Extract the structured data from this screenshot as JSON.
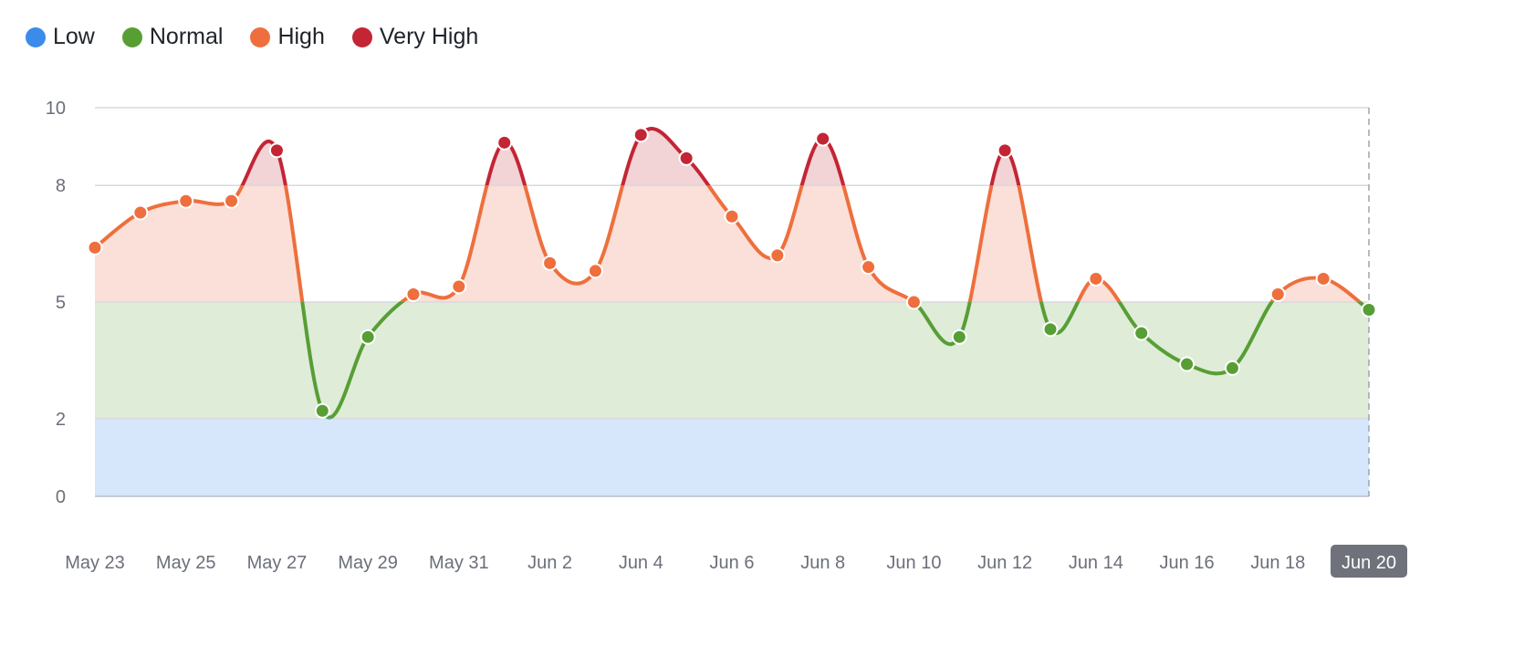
{
  "legend": [
    {
      "label": "Low",
      "color": "#3b8beb"
    },
    {
      "label": "Normal",
      "color": "#579e35"
    },
    {
      "label": "High",
      "color": "#ee6f3d"
    },
    {
      "label": "Very High",
      "color": "#c32535"
    }
  ],
  "chart_data": {
    "type": "line",
    "title": "",
    "xlabel": "",
    "ylabel": "",
    "ylim": [
      0,
      10
    ],
    "y_ticks": [
      "0",
      "2",
      "5",
      "8",
      "10"
    ],
    "bands": [
      {
        "name": "Low",
        "from": 0,
        "to": 2,
        "color": "#d6e6fb"
      },
      {
        "name": "Normal",
        "from": 2,
        "to": 5,
        "color": "#deecd8"
      },
      {
        "name": "High",
        "from": 5,
        "to": 8,
        "color": "#fae0d8"
      },
      {
        "name": "Very High",
        "from": 8,
        "to": 10,
        "color": "#f2d3d6"
      }
    ],
    "x": [
      "May 23",
      "May 24",
      "May 25",
      "May 26",
      "May 27",
      "May 28",
      "May 29",
      "May 30",
      "May 31",
      "Jun 1",
      "Jun 2",
      "Jun 3",
      "Jun 4",
      "Jun 5",
      "Jun 6",
      "Jun 7",
      "Jun 8",
      "Jun 9",
      "Jun 10",
      "Jun 11",
      "Jun 12",
      "Jun 13",
      "Jun 14",
      "Jun 15",
      "Jun 16",
      "Jun 17",
      "Jun 18",
      "Jun 19",
      "Jun 20"
    ],
    "values": [
      6.4,
      7.3,
      7.6,
      7.6,
      8.9,
      2.2,
      4.1,
      5.2,
      5.4,
      9.1,
      6.0,
      5.8,
      9.3,
      8.7,
      7.2,
      6.2,
      9.2,
      5.9,
      5.0,
      4.1,
      8.9,
      4.3,
      5.6,
      4.2,
      3.4,
      3.3,
      5.2,
      5.6,
      4.8
    ],
    "x_tick_labels": [
      "May 23",
      "May 25",
      "May 27",
      "May 29",
      "May 31",
      "Jun 2",
      "Jun 4",
      "Jun 6",
      "Jun 8",
      "Jun 10",
      "Jun 12",
      "Jun 14",
      "Jun 16",
      "Jun 18",
      "Jun 20"
    ],
    "highlighted_x": "Jun 20",
    "grid": true,
    "legend_position": "top-left"
  }
}
